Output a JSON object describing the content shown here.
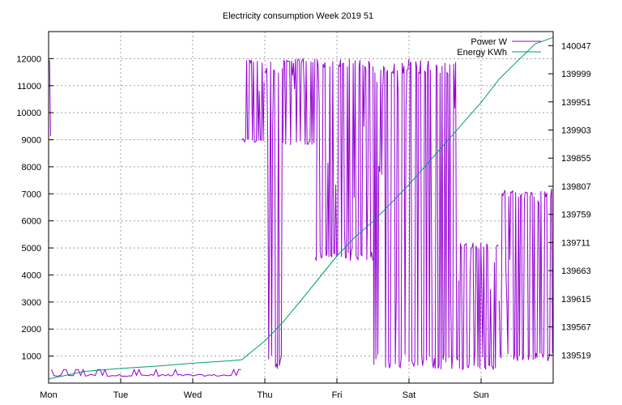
{
  "chart_data": {
    "type": "line",
    "title": "Electricity consumption Week 2019 51",
    "x_ticks": [
      "Mon",
      "Tue",
      "Wed",
      "Thu",
      "Fri",
      "Sat",
      "Sun"
    ],
    "xlim_days": [
      0,
      7.0
    ],
    "y1": {
      "ticks": [
        1000,
        2000,
        3000,
        4000,
        5000,
        6000,
        7000,
        8000,
        9000,
        10000,
        11000,
        12000
      ],
      "ylim": [
        0,
        13000
      ]
    },
    "y2": {
      "ticks": [
        139519,
        139567,
        139615,
        139663,
        139711,
        139759,
        139807,
        139855,
        139903,
        139951,
        139999,
        140047
      ],
      "ylim": [
        139471,
        140071
      ]
    },
    "grid": true,
    "legend_position": "top-right",
    "series": [
      {
        "name": "Power W",
        "axis": "y1",
        "color": "#9400d3",
        "segments": [
          {
            "x_start": 0.0,
            "x_end": 0.04,
            "min": 9000,
            "max": 12000
          },
          {
            "x_start": 0.04,
            "x_end": 2.68,
            "min": 250,
            "max": 500
          },
          {
            "x_start": 2.68,
            "x_end": 3.0,
            "min": 8900,
            "max": 12000
          },
          {
            "x_start": 3.0,
            "x_end": 3.25,
            "min": 500,
            "max": 12000
          },
          {
            "x_start": 3.25,
            "x_end": 3.7,
            "min": 8800,
            "max": 12000
          },
          {
            "x_start": 3.7,
            "x_end": 4.5,
            "min": 4500,
            "max": 12000
          },
          {
            "x_start": 4.5,
            "x_end": 5.0,
            "min": 500,
            "max": 12000
          },
          {
            "x_start": 5.0,
            "x_end": 5.7,
            "min": 500,
            "max": 12000
          },
          {
            "x_start": 5.7,
            "x_end": 6.25,
            "min": 500,
            "max": 5200
          },
          {
            "x_start": 6.25,
            "x_end": 7.0,
            "min": 800,
            "max": 7200
          }
        ]
      },
      {
        "name": "Energy KWh",
        "axis": "y2",
        "color": "#009e73",
        "x": [
          0.0,
          0.5,
          1.0,
          1.5,
          2.0,
          2.5,
          2.68,
          3.0,
          3.25,
          3.5,
          3.75,
          4.0,
          4.25,
          4.5,
          4.75,
          5.0,
          5.25,
          5.5,
          5.75,
          6.0,
          6.25,
          6.5,
          6.75,
          7.0
        ],
        "y": [
          139478,
          139491,
          139496,
          139500,
          139505,
          139509,
          139511,
          139543,
          139575,
          139612,
          139650,
          139688,
          139720,
          139747,
          139778,
          139810,
          139845,
          139880,
          139915,
          139950,
          139990,
          140020,
          140050,
          140061
        ]
      }
    ]
  }
}
